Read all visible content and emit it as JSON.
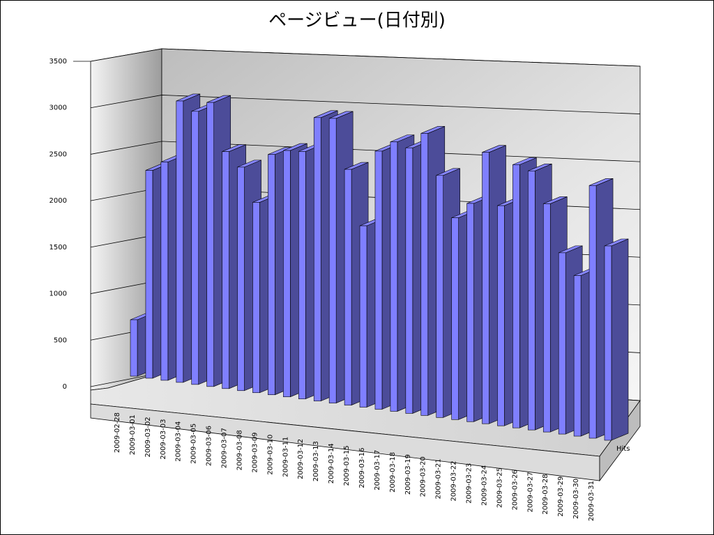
{
  "chart_data": {
    "type": "bar3d",
    "title": "ページビュー(日付別)",
    "categories": [
      "2009-02-28",
      "2009-03-01",
      "2009-03-02",
      "2009-03-03",
      "2009-03-04",
      "2009-03-05",
      "2009-03-06",
      "2009-03-07",
      "2009-03-08",
      "2009-03-09",
      "2009-03-10",
      "2009-03-11",
      "2009-03-12",
      "2009-03-13",
      "2009-03-14",
      "2009-03-15",
      "2009-03-16",
      "2009-03-17",
      "2009-03-18",
      "2009-03-19",
      "2009-03-20",
      "2009-03-21",
      "2009-03-22",
      "2009-03-23",
      "2009-03-24",
      "2009-03-25",
      "2009-03-26",
      "2009-03-27",
      "2009-03-28",
      "2009-03-29",
      "2009-03-30",
      "2009-03-31"
    ],
    "series": [
      {
        "name": "Hits",
        "color": "#7f7fff",
        "values": [
          600,
          2200,
          2300,
          2950,
          2850,
          2950,
          2450,
          2300,
          1950,
          2450,
          2500,
          2500,
          2850,
          2850,
          2350,
          1800,
          2550,
          2650,
          2600,
          2750,
          2350,
          1950,
          2100,
          2600,
          2100,
          2500,
          2450,
          2150,
          1700,
          1500,
          2350,
          1800
        ]
      }
    ],
    "ylim": [
      0,
      3500
    ],
    "yticks": [
      0,
      500,
      1000,
      1500,
      2000,
      2500,
      3000,
      3500
    ],
    "grid": true
  }
}
